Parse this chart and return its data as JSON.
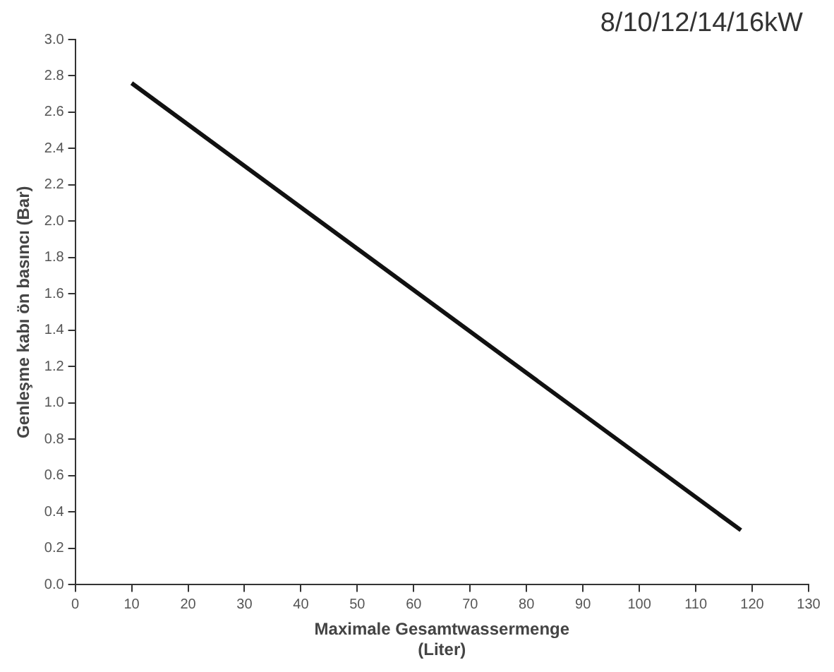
{
  "chart_data": {
    "type": "line",
    "title": "8/10/12/14/16kW",
    "xlabel": "Maximale Gesamtwassermenge\n(Liter)",
    "ylabel": "Genleşme kabı ön basıncı (Bar)",
    "x": [
      10,
      118
    ],
    "series": [
      {
        "color": "#111111",
        "values": [
          2.76,
          0.3
        ]
      }
    ],
    "xlim": [
      0,
      130
    ],
    "xticks": [
      0,
      10,
      20,
      30,
      40,
      50,
      60,
      70,
      80,
      90,
      100,
      110,
      120,
      130
    ],
    "ylim": [
      0,
      3.0
    ],
    "yticks": [
      {
        "value": 0,
        "label": "0.0"
      },
      0.2,
      0.4,
      0.6,
      0.8,
      {
        "value": 1,
        "label": "1.0"
      },
      1.2,
      1.4,
      1.6,
      1.8,
      {
        "value": 2,
        "label": "2.0"
      },
      2.2,
      2.4,
      2.6,
      2.8,
      {
        "value": 3,
        "label": "3.0"
      }
    ],
    "grid": false,
    "legend": false,
    "marker": "none",
    "line_style": "solid"
  }
}
